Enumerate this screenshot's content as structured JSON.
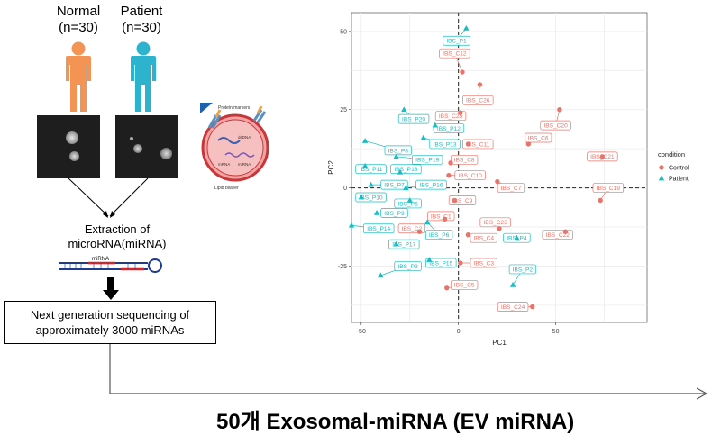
{
  "groups": [
    {
      "name": "Normal",
      "count": "(n=30)",
      "color": "#f39455"
    },
    {
      "name": "Patient",
      "count": "(n=30)",
      "color": "#2eb3cf"
    }
  ],
  "exosome": {
    "protein_markers": "Protein markers",
    "dsdna": "dsDNA",
    "mrna": "mRNA",
    "mirna": "miRNA",
    "lipid_bilayer": "Lipid bilayer"
  },
  "extraction_text_1": "Extraction of",
  "extraction_text_2": "microRNA(miRNA)",
  "mirna_label": "miRNA",
  "ngs_line1": "Next generation sequencing of",
  "ngs_line2": "approximately 3000 miRNAs",
  "footer_title": "50개 Exosomal-miRNA (EV miRNA)",
  "chart_data": {
    "type": "scatter",
    "title": "",
    "xlabel": "PC1",
    "ylabel": "PC2",
    "xlim": [
      -55,
      97
    ],
    "ylim": [
      -43,
      56
    ],
    "xticks": [
      -50,
      0,
      50
    ],
    "yticks": [
      -25,
      0,
      25,
      50
    ],
    "grid": true,
    "legend_position": "right",
    "legend_title": "condition",
    "series": [
      {
        "name": "Control",
        "color": "#e8756b",
        "points": [
          {
            "label": "IBS_C12",
            "x": 2,
            "y": 37
          },
          {
            "label": "IBS_C26",
            "x": 11,
            "y": 33
          },
          {
            "label": "IBS_C25",
            "x": 1,
            "y": 24
          },
          {
            "label": "IBS_C20",
            "x": 52,
            "y": 25
          },
          {
            "label": "IBS_C6",
            "x": 36,
            "y": 14
          },
          {
            "label": "IBS_C11",
            "x": 5,
            "y": 14
          },
          {
            "label": "IBS_C21",
            "x": 74,
            "y": 10
          },
          {
            "label": "IBS_C8",
            "x": -4,
            "y": 8
          },
          {
            "label": "IBS_C10",
            "x": -5,
            "y": 4
          },
          {
            "label": "IBS_C7",
            "x": 20,
            "y": 2
          },
          {
            "label": "IBS_C19",
            "x": 73,
            "y": -4
          },
          {
            "label": "IBS_C9",
            "x": -2,
            "y": -4
          },
          {
            "label": "IBS_C1",
            "x": -7,
            "y": -10
          },
          {
            "label": "IBS_C2",
            "x": -20,
            "y": -14
          },
          {
            "label": "IBS_C23",
            "x": 21,
            "y": -13
          },
          {
            "label": "IBS_C22",
            "x": 55,
            "y": -14
          },
          {
            "label": "IBS_C4",
            "x": 5,
            "y": -15
          },
          {
            "label": "IBS_C3",
            "x": 1,
            "y": -24
          },
          {
            "label": "IBS_C5",
            "x": -6,
            "y": -32
          },
          {
            "label": "IBS_C24",
            "x": 38,
            "y": -38
          }
        ]
      },
      {
        "name": "Patient",
        "color": "#19bcc2",
        "points": [
          {
            "label": "IBS_P1",
            "x": 4,
            "y": 51
          },
          {
            "label": "IBS_P20",
            "x": -28,
            "y": 25
          },
          {
            "label": "IBS_P12",
            "x": -12,
            "y": 20
          },
          {
            "label": "IBS_P13",
            "x": -18,
            "y": 16
          },
          {
            "label": "IBS_P8",
            "x": -48,
            "y": 15
          },
          {
            "label": "IBS_P19",
            "x": -32,
            "y": 10
          },
          {
            "label": "IBS_P11",
            "x": -48,
            "y": 7
          },
          {
            "label": "IBS_P18",
            "x": -30,
            "y": 5
          },
          {
            "label": "IBS_P7",
            "x": -45,
            "y": 1
          },
          {
            "label": "IBS_P16",
            "x": -27,
            "y": 0
          },
          {
            "label": "IBS_P10",
            "x": -50,
            "y": -3
          },
          {
            "label": "IBS_P5",
            "x": -25,
            "y": -4
          },
          {
            "label": "IBS_P9",
            "x": -42,
            "y": -8
          },
          {
            "label": "IBS_P14",
            "x": -55,
            "y": -12
          },
          {
            "label": "IBS_P6",
            "x": -16,
            "y": -11
          },
          {
            "label": "IBS_P4",
            "x": 30,
            "y": -16
          },
          {
            "label": "IBS_P17",
            "x": -32,
            "y": -18
          },
          {
            "label": "IBS_P15",
            "x": -15,
            "y": -23
          },
          {
            "label": "IBS_P3",
            "x": -40,
            "y": -28
          },
          {
            "label": "IBS_P2",
            "x": 28,
            "y": -31
          }
        ]
      }
    ],
    "annotations": [
      {
        "series": "Control",
        "label": "IBS_C12",
        "lx": -2,
        "ly": 43
      },
      {
        "series": "Control",
        "label": "IBS_C26",
        "lx": 10,
        "ly": 28
      },
      {
        "series": "Control",
        "label": "IBS_C25",
        "lx": -4,
        "ly": 23
      },
      {
        "series": "Control",
        "label": "IBS_C20",
        "lx": 50,
        "ly": 20
      },
      {
        "series": "Control",
        "label": "IBS_C6",
        "lx": 41,
        "ly": 16
      },
      {
        "series": "Control",
        "label": "IBS_C11",
        "lx": 10,
        "ly": 14
      },
      {
        "series": "Control",
        "label": "IBS_C21",
        "lx": 74,
        "ly": 10
      },
      {
        "series": "Control",
        "label": "IBS_C8",
        "lx": 3,
        "ly": 9
      },
      {
        "series": "Control",
        "label": "IBS_C10",
        "lx": 6,
        "ly": 4
      },
      {
        "series": "Control",
        "label": "IBS_C7",
        "lx": 27,
        "ly": 0
      },
      {
        "series": "Control",
        "label": "IBS_C19",
        "lx": 77,
        "ly": 0
      },
      {
        "series": "Control",
        "label": "IBS_C9",
        "lx": 2,
        "ly": -4
      },
      {
        "series": "Control",
        "label": "IBS_C1",
        "lx": -9,
        "ly": -9
      },
      {
        "series": "Control",
        "label": "IBS_C2",
        "lx": -24,
        "ly": -13
      },
      {
        "series": "Control",
        "label": "IBS_C23",
        "lx": 19,
        "ly": -11
      },
      {
        "series": "Control",
        "label": "IBS_C22",
        "lx": 51,
        "ly": -15
      },
      {
        "series": "Control",
        "label": "IBS_C4",
        "lx": 13,
        "ly": -16
      },
      {
        "series": "Control",
        "label": "IBS_C3",
        "lx": 13,
        "ly": -24
      },
      {
        "series": "Control",
        "label": "IBS_C5",
        "lx": 3,
        "ly": -31
      },
      {
        "series": "Control",
        "label": "IBS_C24",
        "lx": 28,
        "ly": -38
      },
      {
        "series": "Patient",
        "label": "IBS_P1",
        "lx": -1,
        "ly": 47
      },
      {
        "series": "Patient",
        "label": "IBS_P20",
        "lx": -23,
        "ly": 22
      },
      {
        "series": "Patient",
        "label": "IBS_P12",
        "lx": -5,
        "ly": 19
      },
      {
        "series": "Patient",
        "label": "IBS_P13",
        "lx": -7,
        "ly": 14
      },
      {
        "series": "Patient",
        "label": "IBS_P8",
        "lx": -31,
        "ly": 12
      },
      {
        "series": "Patient",
        "label": "IBS_P19",
        "lx": -16,
        "ly": 9
      },
      {
        "series": "Patient",
        "label": "IBS_P11",
        "lx": -45,
        "ly": 6
      },
      {
        "series": "Patient",
        "label": "IBS_P18",
        "lx": -27,
        "ly": 6
      },
      {
        "series": "Patient",
        "label": "IBS_P7",
        "lx": -33,
        "ly": 1
      },
      {
        "series": "Patient",
        "label": "IBS_P16",
        "lx": -14,
        "ly": 1
      },
      {
        "series": "Patient",
        "label": "IBS_P10",
        "lx": -45,
        "ly": -3
      },
      {
        "series": "Patient",
        "label": "IBS_P5",
        "lx": -26,
        "ly": -5
      },
      {
        "series": "Patient",
        "label": "IBS_P9",
        "lx": -33,
        "ly": -8
      },
      {
        "series": "Patient",
        "label": "IBS_P14",
        "lx": -41,
        "ly": -13
      },
      {
        "series": "Patient",
        "label": "IBS_P6",
        "lx": -10,
        "ly": -15
      },
      {
        "series": "Patient",
        "label": "IBS_P4",
        "lx": 30,
        "ly": -16
      },
      {
        "series": "Patient",
        "label": "IBS_P17",
        "lx": -28,
        "ly": -18
      },
      {
        "series": "Patient",
        "label": "IBS_P15",
        "lx": -9,
        "ly": -24
      },
      {
        "series": "Patient",
        "label": "IBS_P3",
        "lx": -26,
        "ly": -25
      },
      {
        "series": "Patient",
        "label": "IBS_P2",
        "lx": 33,
        "ly": -26
      }
    ]
  }
}
